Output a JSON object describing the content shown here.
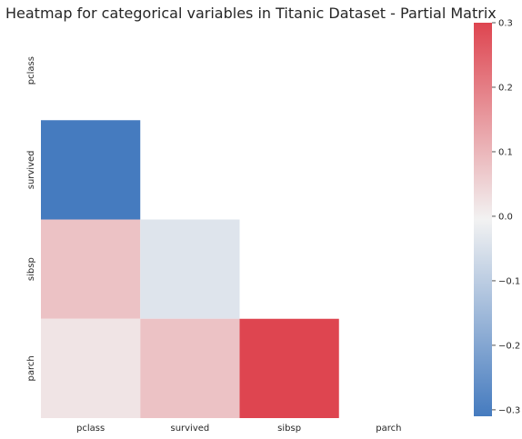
{
  "chart_data": {
    "type": "heatmap",
    "title": "Heatmap for categorical variables in Titanic Dataset - Partial Matrix",
    "variables": [
      "pclass",
      "survived",
      "sibsp",
      "parch"
    ],
    "mask": "upper triangle and diagonal",
    "cells": [
      {
        "row": "survived",
        "col": "pclass",
        "value": -0.34
      },
      {
        "row": "sibsp",
        "col": "pclass",
        "value": 0.08
      },
      {
        "row": "sibsp",
        "col": "survived",
        "value": -0.04
      },
      {
        "row": "parch",
        "col": "pclass",
        "value": 0.02
      },
      {
        "row": "parch",
        "col": "survived",
        "value": 0.08
      },
      {
        "row": "parch",
        "col": "sibsp",
        "value": 0.41
      }
    ],
    "colorbar": {
      "range": [
        -0.31,
        0.3
      ],
      "ticks": [
        "0.3",
        "0.2",
        "0.1",
        "0.0",
        "−0.1",
        "−0.2",
        "−0.3"
      ],
      "tick_values": [
        0.3,
        0.2,
        0.1,
        0.0,
        -0.1,
        -0.2,
        -0.3
      ]
    },
    "colors": {
      "negative": "#457bbf",
      "neutral": "#f2f2f2",
      "positive": "#de4550"
    }
  }
}
